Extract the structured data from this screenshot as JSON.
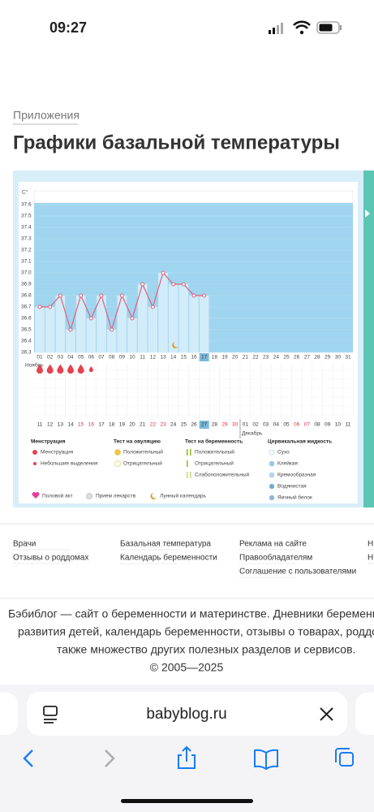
{
  "status_bar": {
    "time": "09:27"
  },
  "header": {
    "breadcrumb": "Приложения",
    "title": "Графики базальной температуры"
  },
  "chart": {
    "type": "line",
    "y_label": "C°",
    "ylim": [
      36.3,
      37.6
    ],
    "yticks": [
      37.6,
      37.5,
      37.4,
      37.3,
      37.2,
      37.1,
      {
        "value": 37.0,
        "label": "37.0"
      },
      36.9,
      36.8,
      36.7,
      36.6,
      36.5,
      36.4,
      36.3
    ],
    "categories": [
      "01",
      "02",
      "03",
      "04",
      "05",
      "06",
      "07",
      "08",
      "09",
      "10",
      "11",
      "12",
      "13",
      "14",
      "15",
      "16",
      "17",
      "18",
      "19",
      "20",
      "21",
      "22",
      "23",
      "24",
      "25",
      "26",
      "27",
      "28",
      "29",
      "30",
      "31"
    ],
    "values": [
      36.7,
      36.7,
      36.8,
      36.5,
      36.8,
      36.6,
      36.8,
      36.5,
      36.8,
      36.6,
      36.9,
      36.7,
      37.0,
      36.9,
      36.9,
      36.8,
      36.8,
      null,
      null,
      null,
      null,
      null,
      null,
      null,
      null,
      null,
      null,
      null,
      null,
      null,
      null
    ],
    "color": "#e0607a",
    "fill": "#d3ecf9",
    "background": "#9fd5ef",
    "month1": "Ноябрь",
    "month2": "Декабрь",
    "dates": [
      "11",
      "12",
      "13",
      "14",
      "15",
      "16",
      "17",
      "18",
      "19",
      "20",
      "21",
      "22",
      "23",
      "24",
      "25",
      "26",
      "27",
      "28",
      "29",
      "30",
      "01",
      "02",
      "03",
      "04",
      "05",
      "06",
      "07",
      "08",
      "09",
      "10",
      "11"
    ],
    "date_colors": [
      "#333",
      "#333",
      "#333",
      "#333",
      "#d8323c",
      "#d8323c",
      "#333",
      "#333",
      "#333",
      "#333",
      "#333",
      "#d8323c",
      "#d8323c",
      "#333",
      "#333",
      "#333",
      "#333",
      "#333",
      "#d8323c",
      "#d8323c",
      "#333",
      "#333",
      "#333",
      "#333",
      "#333",
      "#d8323c",
      "#d8323c",
      "#333",
      "#333",
      "#333",
      "#333"
    ],
    "legend": [
      {
        "title": "Менструация",
        "items": [
          "Менструация",
          "Небольшие выделения"
        ]
      },
      {
        "title": "Тест на овуляцию",
        "items": [
          "Положительный",
          "Отрицательный"
        ]
      },
      {
        "title": "Тест на беременность",
        "items": [
          "Положительный",
          "Отрицательный",
          "Слабоположительный"
        ]
      },
      {
        "title": "Цервикальная жидкость",
        "items": [
          "Сухо",
          "Клейкая",
          "Кремообразная",
          "Водянистая",
          "Яичный белок"
        ]
      }
    ],
    "extras": [
      "Половой акт",
      "Прием лекарств",
      "Лунный календарь"
    ]
  },
  "footer": {
    "links": [
      [
        "Врачи",
        "Отзывы о роддомах"
      ],
      [
        "Базальная температура",
        "Календарь беременности"
      ],
      [
        "Реклама на сайте",
        "Правообладателям",
        "Соглашение с пользователями"
      ],
      [
        "Н",
        "Н"
      ]
    ],
    "about": [
      "Бэбиблог — сайт о беременности и материнстве. Дневники беременно",
      "развития детей, календарь беременности, отзывы о товарах, роддом",
      "также множество других полезных разделов и сервисов.",
      "© 2005—2025"
    ]
  },
  "browser": {
    "url": "babyblog.ru"
  }
}
